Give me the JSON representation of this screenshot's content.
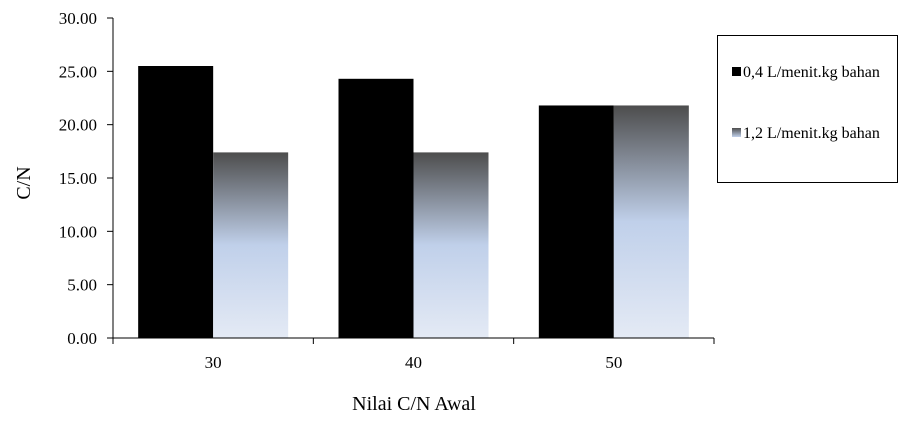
{
  "chart_data": {
    "type": "bar",
    "title": "",
    "xlabel": "Nilai C/N Awal",
    "ylabel": "C/N",
    "categories": [
      "30",
      "40",
      "50"
    ],
    "ylim": [
      0,
      30
    ],
    "yticks": [
      "0.00",
      "5.00",
      "10.00",
      "15.00",
      "20.00",
      "25.00",
      "30.00"
    ],
    "grid": false,
    "legend_position": "right",
    "series": [
      {
        "name": "0,4 L/menit.kg bahan",
        "values": [
          25.5,
          24.3,
          21.8
        ],
        "color": "#000000"
      },
      {
        "name": "1,2 L/menit.kg bahan",
        "values": [
          17.4,
          17.4,
          21.8
        ],
        "color_top": "#4d4d4d",
        "color_mid": "#c0d0ea",
        "color_bottom": "#e4eaf5"
      }
    ]
  }
}
